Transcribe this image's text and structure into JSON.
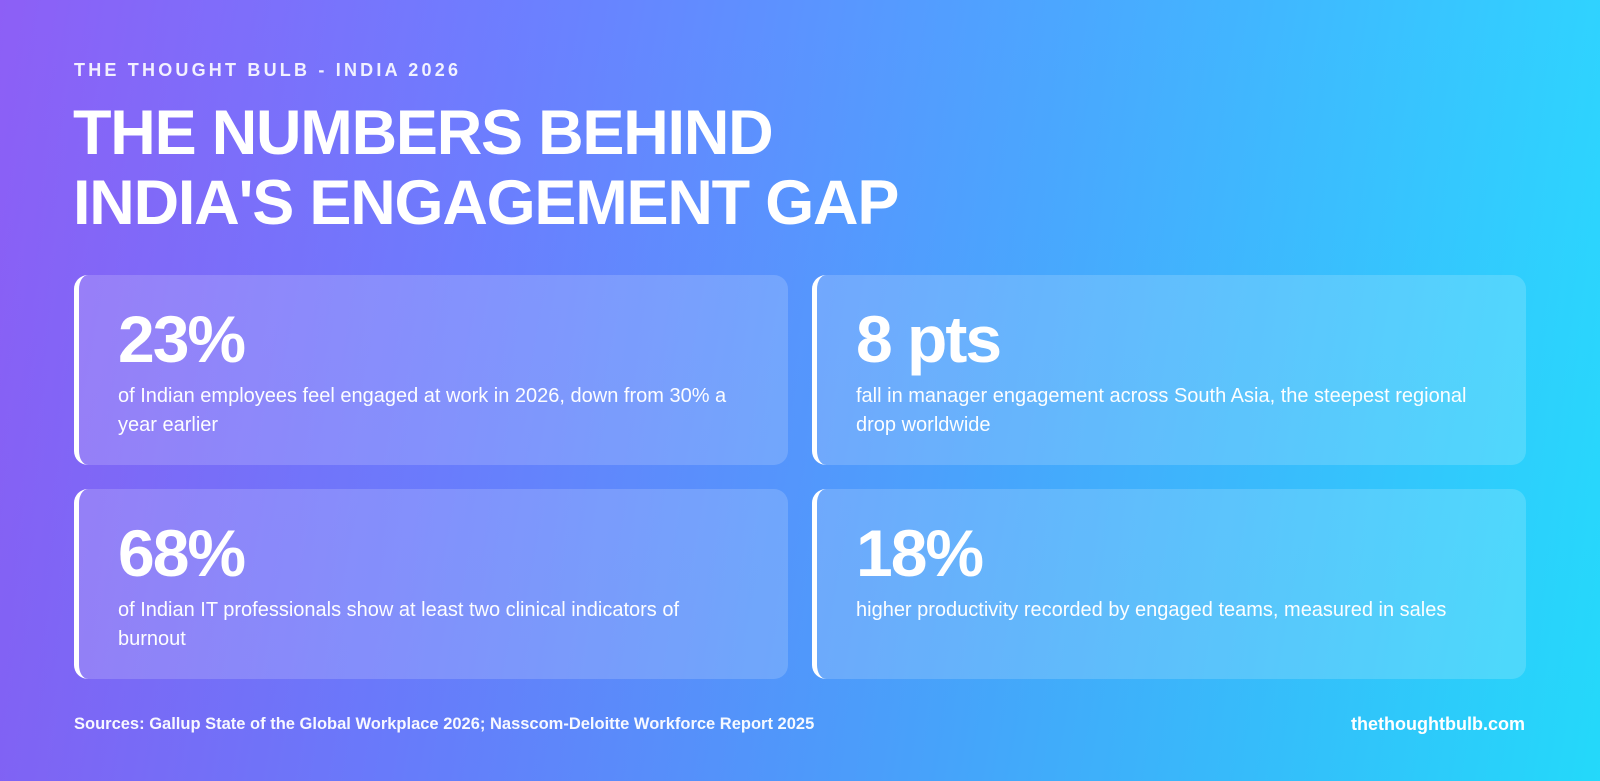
{
  "header": {
    "eyebrow": "THE THOUGHT BULB - INDIA 2026",
    "title_line1": "THE NUMBERS BEHIND",
    "title_line2": "INDIA'S ENGAGEMENT GAP"
  },
  "stats": [
    {
      "value": "23%",
      "description": "of Indian employees feel engaged at work in 2026, down from 30% a year earlier"
    },
    {
      "value": "8 pts",
      "description": "fall in manager engagement across South Asia, the steepest regional drop worldwide"
    },
    {
      "value": "68%",
      "description": "of Indian IT professionals show at least two clinical indicators of burnout"
    },
    {
      "value": "18%",
      "description": "higher productivity recorded by engaged teams, measured in sales"
    }
  ],
  "footer": {
    "sources": "Sources: Gallup State of the Global Workplace 2026; Nasscom-Deloitte Workforce Report 2025",
    "website": "thethoughtbulb.com"
  },
  "colors": {
    "gradient_start": "#8b5cf6",
    "gradient_mid": "#47a6ff",
    "gradient_end": "#24ddff",
    "text": "#ffffff"
  }
}
